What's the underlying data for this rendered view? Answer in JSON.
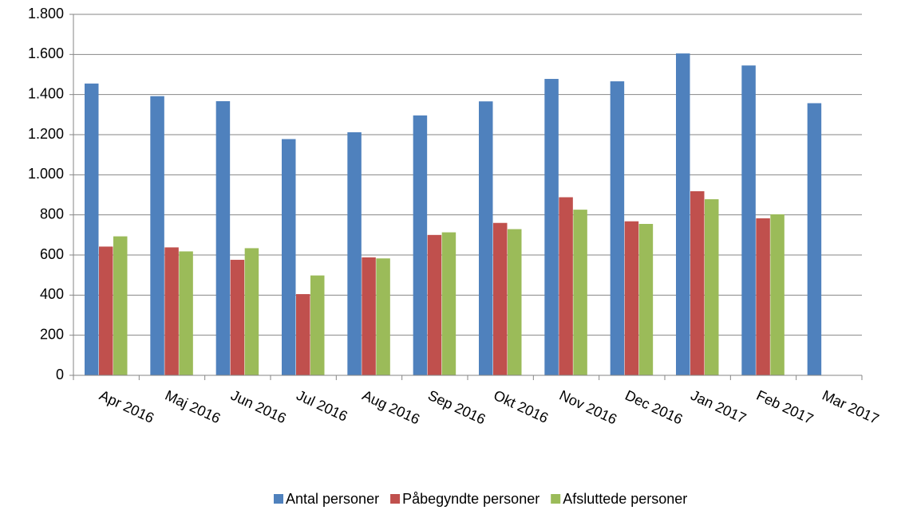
{
  "chart_data": {
    "type": "bar",
    "categories": [
      "Apr 2016",
      "Maj 2016",
      "Jun 2016",
      "Jul 2016",
      "Aug 2016",
      "Sep 2016",
      "Okt 2016",
      "Nov 2016",
      "Dec 2016",
      "Jan 2017",
      "Feb 2017",
      "Mar 2017"
    ],
    "series": [
      {
        "name": "Antal personer",
        "color": "#4f81bd",
        "values": [
          1455,
          1392,
          1367,
          1178,
          1212,
          1296,
          1366,
          1478,
          1466,
          1605,
          1545,
          1357
        ]
      },
      {
        "name": "Påbegyndte personer",
        "color": "#c0504d",
        "values": [
          642,
          638,
          576,
          405,
          588,
          700,
          760,
          888,
          768,
          918,
          783,
          null
        ]
      },
      {
        "name": "Afsluttede personer",
        "color": "#9bbb59",
        "values": [
          693,
          618,
          634,
          498,
          583,
          713,
          729,
          826,
          755,
          878,
          803,
          null
        ]
      }
    ],
    "ylim": [
      0,
      1800
    ],
    "yticks": [
      0,
      200,
      400,
      600,
      800,
      {
        "value": 1000,
        "label": "1.000"
      },
      {
        "value": 1200,
        "label": "1.200"
      },
      {
        "value": 1400,
        "label": "1.400"
      },
      {
        "value": 1600,
        "label": "1.600"
      },
      {
        "value": 1800,
        "label": "1.800"
      }
    ],
    "grid": true,
    "legend": "bottom"
  }
}
